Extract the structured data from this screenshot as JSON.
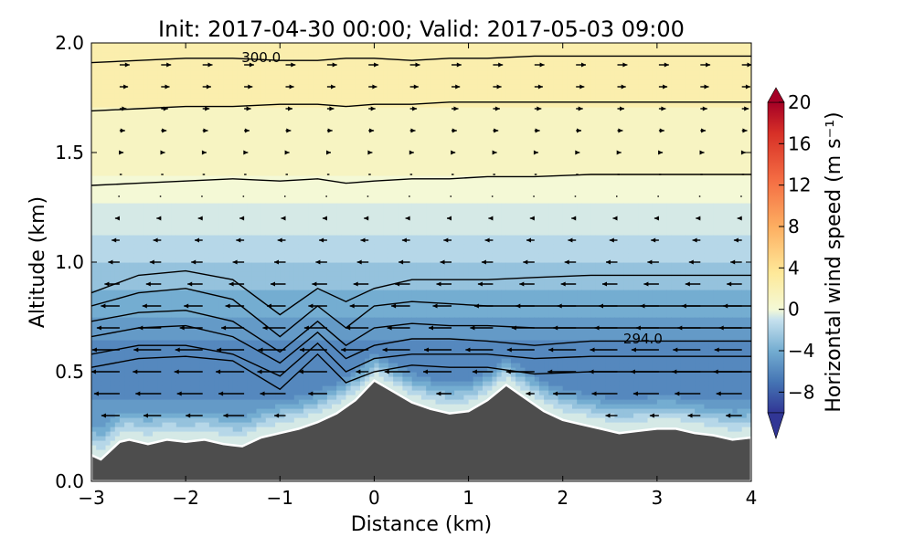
{
  "chart_data": {
    "type": "contour",
    "title": "Init: 2017-04-30 00:00; Valid: 2017-05-03 09:00",
    "xlabel": "Distance (km)",
    "ylabel": "Altitude (km)",
    "xlim": [
      -3,
      4
    ],
    "ylim": [
      0.0,
      2.0
    ],
    "xticks": [
      -3,
      -2,
      -1,
      0,
      1,
      2,
      3,
      4
    ],
    "xtick_labels": [
      "−3",
      "−2",
      "−1",
      "0",
      "1",
      "2",
      "3",
      "4"
    ],
    "yticks": [
      0.0,
      0.5,
      1.0,
      1.5,
      2.0
    ],
    "ytick_labels": [
      "0.0",
      "0.5",
      "1.0",
      "1.5",
      "2.0"
    ],
    "colorbar": {
      "label": "Horizontal wind speed (m s⁻¹)",
      "min": -10,
      "max": 20,
      "ticks": [
        -8,
        -4,
        0,
        4,
        8,
        12,
        16,
        20
      ],
      "tick_labels": [
        "−8",
        "−4",
        "0",
        "4",
        "8",
        "12",
        "16",
        "20"
      ],
      "extend": "both"
    },
    "terrain": {
      "color": "#4d4d4d",
      "x": [
        -3.0,
        -2.9,
        -2.8,
        -2.7,
        -2.6,
        -2.5,
        -2.4,
        -2.2,
        -2.0,
        -1.8,
        -1.6,
        -1.4,
        -1.2,
        -1.0,
        -0.8,
        -0.6,
        -0.4,
        -0.2,
        0.0,
        0.2,
        0.4,
        0.6,
        0.8,
        1.0,
        1.2,
        1.4,
        1.6,
        1.8,
        2.0,
        2.2,
        2.4,
        2.6,
        2.8,
        3.0,
        3.2,
        3.4,
        3.6,
        3.8,
        4.0
      ],
      "altitude": [
        0.12,
        0.1,
        0.14,
        0.18,
        0.19,
        0.18,
        0.17,
        0.19,
        0.18,
        0.19,
        0.17,
        0.16,
        0.2,
        0.22,
        0.24,
        0.27,
        0.31,
        0.37,
        0.46,
        0.41,
        0.36,
        0.33,
        0.31,
        0.32,
        0.37,
        0.44,
        0.38,
        0.32,
        0.28,
        0.26,
        0.24,
        0.22,
        0.23,
        0.24,
        0.24,
        0.22,
        0.21,
        0.19,
        0.2
      ]
    },
    "wind_speed_profile": [
      {
        "altitude": 0.3,
        "speed": -5.0
      },
      {
        "altitude": 0.55,
        "speed": -6.5
      },
      {
        "altitude": 0.75,
        "speed": -4.5
      },
      {
        "altitude": 1.0,
        "speed": -2.5
      },
      {
        "altitude": 1.2,
        "speed": -1.0
      },
      {
        "altitude": 1.4,
        "speed": 0.5
      },
      {
        "altitude": 1.7,
        "speed": 1.5
      },
      {
        "altitude": 2.0,
        "speed": 2.5
      }
    ],
    "isentropes": [
      {
        "altitude": [
          0.52,
          0.56,
          0.57,
          0.55,
          0.42,
          0.58,
          0.45,
          0.5,
          0.53,
          0.52,
          0.52,
          0.49,
          0.5
        ],
        "label": ""
      },
      {
        "altitude": [
          0.58,
          0.62,
          0.62,
          0.58,
          0.48,
          0.63,
          0.5,
          0.56,
          0.58,
          0.58,
          0.58,
          0.56,
          0.57
        ],
        "label": ""
      },
      {
        "altitude": [
          0.66,
          0.7,
          0.71,
          0.66,
          0.54,
          0.68,
          0.56,
          0.62,
          0.65,
          0.65,
          0.64,
          0.62,
          0.64
        ],
        "label": "294.0"
      },
      {
        "altitude": [
          0.73,
          0.77,
          0.78,
          0.73,
          0.59,
          0.73,
          0.62,
          0.7,
          0.72,
          0.71,
          0.71,
          0.7,
          0.7
        ],
        "label": ""
      },
      {
        "altitude": [
          0.8,
          0.86,
          0.88,
          0.83,
          0.66,
          0.8,
          0.7,
          0.8,
          0.82,
          0.81,
          0.8,
          0.8,
          0.8
        ],
        "label": ""
      },
      {
        "altitude": [
          0.86,
          0.94,
          0.96,
          0.92,
          0.76,
          0.88,
          0.82,
          0.88,
          0.92,
          0.92,
          0.92,
          0.93,
          0.94
        ],
        "label": ""
      },
      {
        "altitude": [
          1.35,
          1.36,
          1.37,
          1.38,
          1.37,
          1.38,
          1.36,
          1.37,
          1.38,
          1.38,
          1.39,
          1.39,
          1.4
        ],
        "label": ""
      },
      {
        "altitude": [
          1.69,
          1.7,
          1.71,
          1.71,
          1.72,
          1.72,
          1.71,
          1.72,
          1.72,
          1.73,
          1.73,
          1.73,
          1.73
        ],
        "label": ""
      },
      {
        "altitude": [
          1.91,
          1.92,
          1.93,
          1.93,
          1.92,
          1.92,
          1.93,
          1.93,
          1.92,
          1.93,
          1.93,
          1.94,
          1.94
        ],
        "label": "300.0"
      }
    ],
    "isentrope_x": [
      -3.0,
      -2.5,
      -2.0,
      -1.5,
      -1.0,
      -0.6,
      -0.3,
      0.0,
      0.4,
      0.8,
      1.2,
      1.7,
      2.3
    ]
  }
}
